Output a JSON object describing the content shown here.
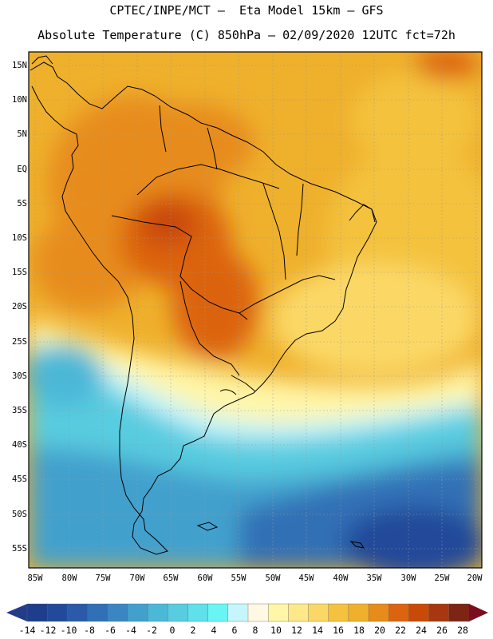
{
  "header": {
    "line1": "CPTEC/INPE/MCT –  Eta Model 15km – GFS",
    "line2": "Absolute Temperature (C) 850hPa – 02/09/2020 12UTC fct=72h"
  },
  "axes": {
    "lat_labels": [
      "15N",
      "10N",
      "5N",
      "EQ",
      "5S",
      "10S",
      "15S",
      "20S",
      "25S",
      "30S",
      "35S",
      "40S",
      "45S",
      "50S",
      "55S"
    ],
    "lon_labels": [
      "85W",
      "80W",
      "75W",
      "70W",
      "65W",
      "60W",
      "55W",
      "50W",
      "45W",
      "40W",
      "35W",
      "30W",
      "25W",
      "20W"
    ]
  },
  "colorbar": {
    "labels": [
      "-14",
      "-12",
      "-10",
      "-8",
      "-6",
      "-4",
      "-2",
      "0",
      "2",
      "4",
      "6",
      "8",
      "10",
      "12",
      "14",
      "16",
      "18",
      "20",
      "22",
      "24",
      "26",
      "28"
    ],
    "colors": [
      "#1e3d8c",
      "#234a9a",
      "#2a5aa8",
      "#3170b6",
      "#3a86c2",
      "#43a0cd",
      "#4cb8d8",
      "#58cce0",
      "#5fe0ea",
      "#6af5f5",
      "#c7f5fc",
      "#fff8e4",
      "#fff6a8",
      "#fde88a",
      "#fbd866",
      "#f4c23e",
      "#efb02c",
      "#e78c1a",
      "#dc6410",
      "#c94a08",
      "#a83610",
      "#7e2414"
    ],
    "under_color": "#223c8a",
    "over_color": "#7a0e20"
  }
}
